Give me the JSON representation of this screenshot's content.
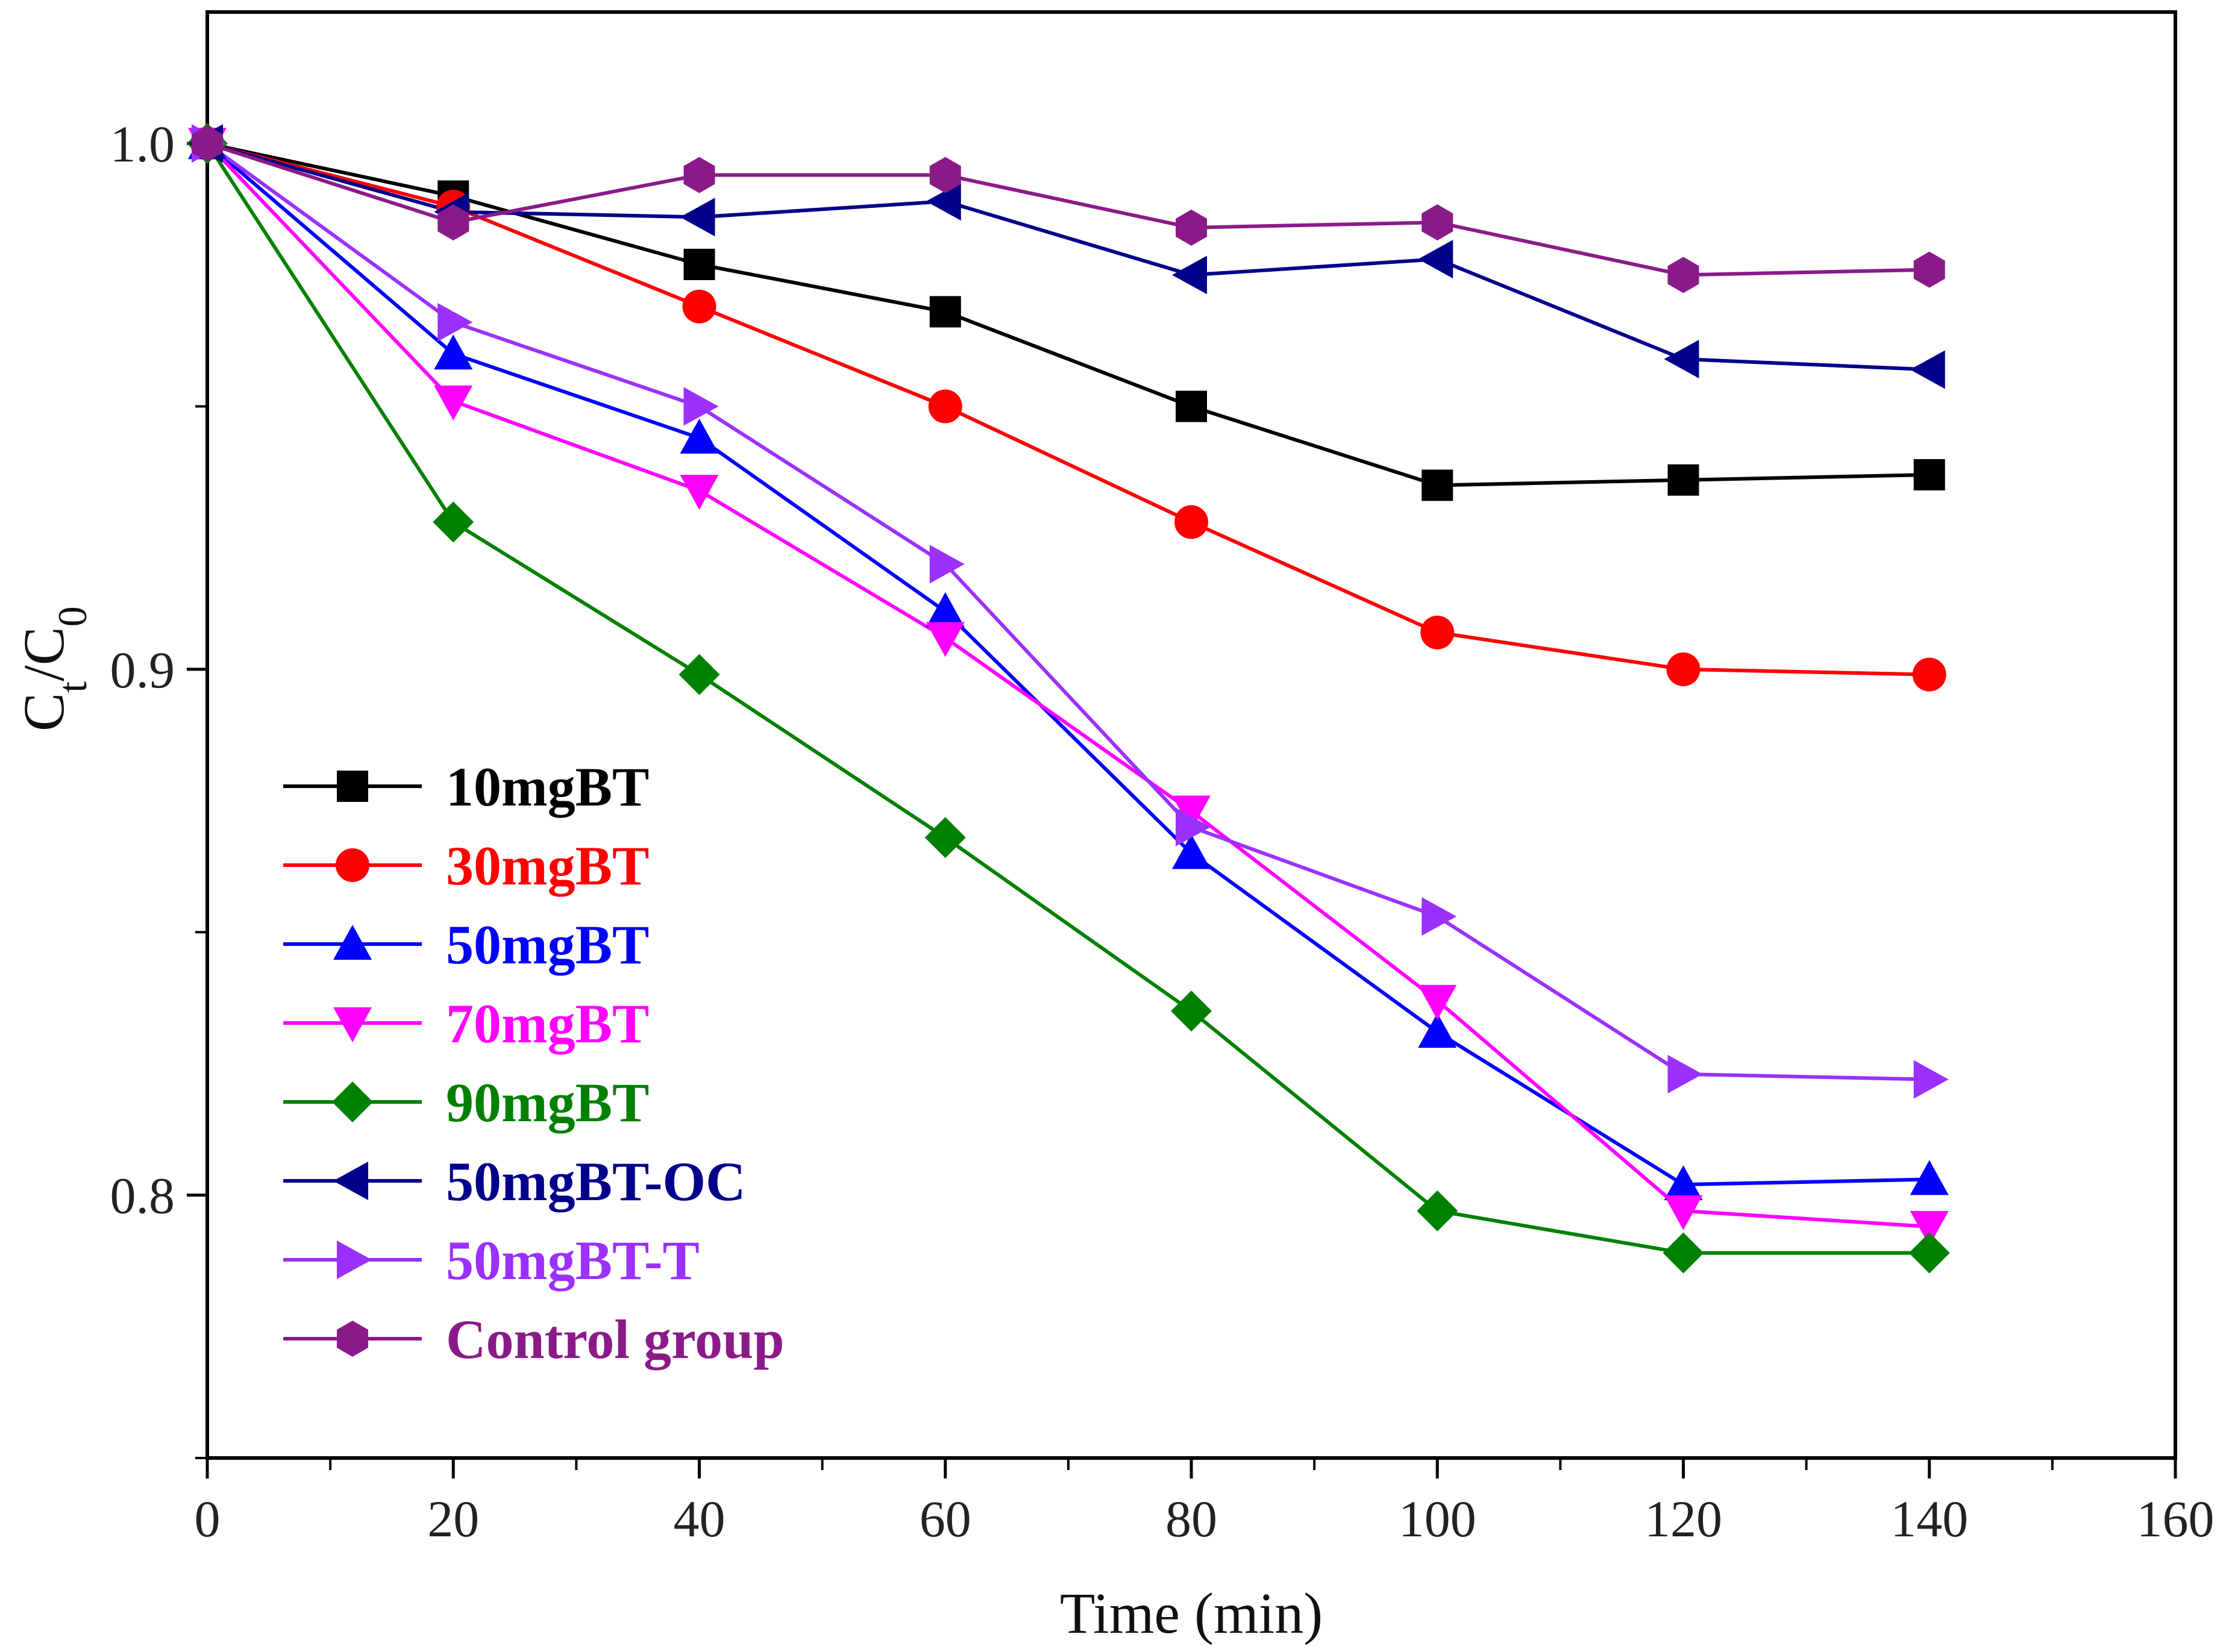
{
  "chart_data": {
    "type": "line",
    "title": "",
    "xlabel": "Time (min)",
    "ylabel_main": "C",
    "ylabel_sub1": "t",
    "ylabel_sep": "/C",
    "ylabel_sub2": "0",
    "xlim": [
      0,
      160
    ],
    "ylim": [
      0.75,
      1.025
    ],
    "x_ticks": [
      0,
      20,
      40,
      60,
      80,
      100,
      120,
      140,
      160
    ],
    "x_tick_labels": [
      "0",
      "20",
      "40",
      "60",
      "80",
      "100",
      "120",
      "140",
      "160"
    ],
    "y_ticks": [
      0.8,
      0.9,
      1.0
    ],
    "y_tick_labels": [
      "0.8",
      "0.9",
      "1.0"
    ],
    "y_minor_ticks": [
      0.75,
      0.85,
      0.95
    ],
    "legend_position": "lower-left",
    "x": [
      0,
      20,
      40,
      60,
      80,
      100,
      120,
      140
    ],
    "series": [
      {
        "name": "10mgBT",
        "color": "#000000",
        "marker": "square",
        "values": [
          1.0,
          0.99,
          0.977,
          0.968,
          0.95,
          0.935,
          0.936,
          0.937
        ]
      },
      {
        "name": "30mgBT",
        "color": "#ff0000",
        "marker": "circle",
        "values": [
          1.0,
          0.988,
          0.969,
          0.95,
          0.928,
          0.907,
          0.9,
          0.899
        ]
      },
      {
        "name": "50mgBT",
        "color": "#0000ff",
        "marker": "triangle-up",
        "values": [
          1.0,
          0.96,
          0.944,
          0.911,
          0.865,
          0.831,
          0.802,
          0.803
        ]
      },
      {
        "name": "70mgBT",
        "color": "#ff00ff",
        "marker": "triangle-down",
        "values": [
          1.0,
          0.951,
          0.934,
          0.906,
          0.873,
          0.837,
          0.797,
          0.794
        ]
      },
      {
        "name": "90mgBT",
        "color": "#008000",
        "marker": "diamond",
        "values": [
          1.0,
          0.928,
          0.899,
          0.868,
          0.835,
          0.797,
          0.789,
          0.789
        ]
      },
      {
        "name": "50mgBT-OC",
        "color": "#00008b",
        "marker": "triangle-left",
        "values": [
          1.0,
          0.987,
          0.986,
          0.989,
          0.975,
          0.978,
          0.959,
          0.957
        ]
      },
      {
        "name": "50mgBT-T",
        "color": "#9b30ff",
        "marker": "triangle-right",
        "values": [
          1.0,
          0.966,
          0.95,
          0.92,
          0.87,
          0.853,
          0.823,
          0.822
        ]
      },
      {
        "name": "Control group",
        "color": "#8b1a89",
        "marker": "hexagon",
        "values": [
          1.0,
          0.985,
          0.994,
          0.994,
          0.984,
          0.985,
          0.975,
          0.976
        ]
      }
    ]
  }
}
